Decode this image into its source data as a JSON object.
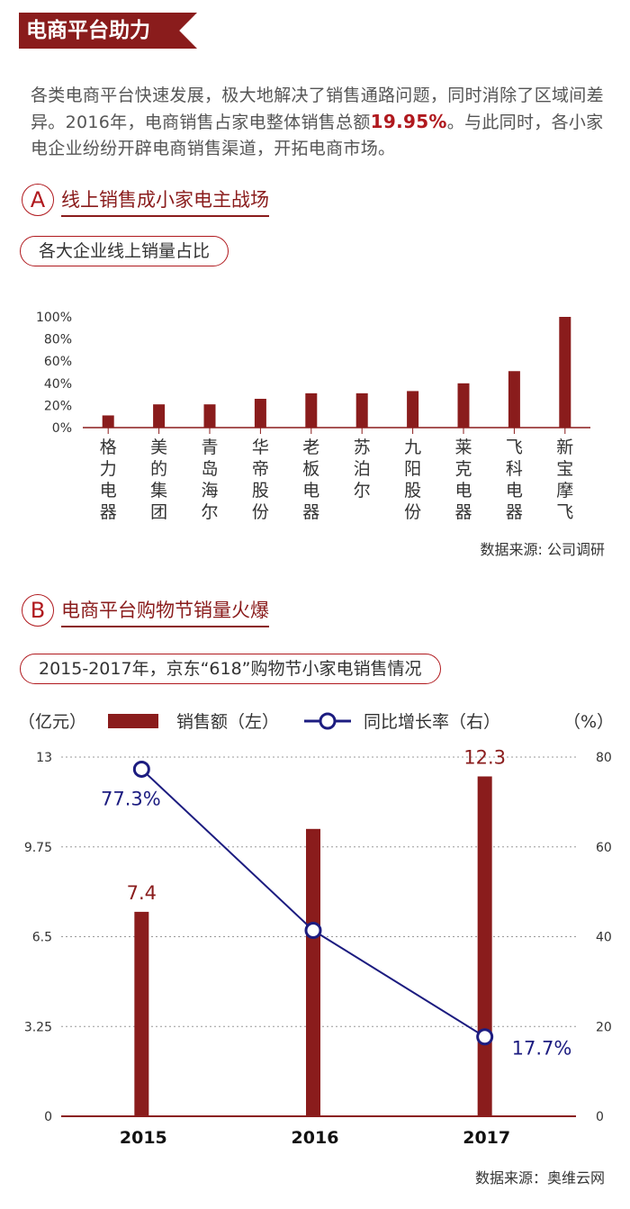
{
  "banner": {
    "title": "电商平台助力"
  },
  "intro": {
    "text_before": "各类电商平台快速发展，极大地解决了销售通路问题，同时消除了区域间差异。2016年，电商销售占家电整体销售总额",
    "highlight": "19.95%",
    "text_after": "。与此同时，各小家电企业纷纷开辟电商销售渠道，开拓电商市场。"
  },
  "section_a": {
    "letter": "A",
    "title": "线上销售成小家电主战场",
    "pill": "各大企业线上销量占比"
  },
  "section_b": {
    "letter": "B",
    "title": "电商平台购物节销量火爆",
    "pill": "2015-2017年，京东“618”购物节小家电销售情况"
  },
  "colors": {
    "accent": "#8a1c1c",
    "line": "#1c1c80",
    "text": "#333333"
  },
  "chart_data": [
    {
      "type": "bar",
      "categories": [
        "格力电器",
        "美的集团",
        "青岛海尔",
        "华帝股份",
        "老板电器",
        "苏泊尔",
        "九阳股份",
        "莱克电器",
        "飞科电器",
        "新宝摩飞"
      ],
      "values": [
        11,
        21,
        21,
        26,
        31,
        31,
        33,
        40,
        51,
        100
      ],
      "ylim": [
        0,
        100
      ],
      "yticks": [
        "0%",
        "20%",
        "40%",
        "60%",
        "80%",
        "100%"
      ],
      "source": "数据来源: 公司调研"
    },
    {
      "type": "bar+line",
      "categories": [
        "2015",
        "2016",
        "2017"
      ],
      "series": [
        {
          "name": "销售额（左）",
          "values": [
            7.4,
            10.4,
            12.3
          ],
          "data_labels": [
            "7.4",
            "",
            "12.3"
          ],
          "axis": "left"
        },
        {
          "name": "同比增长率（右）",
          "values": [
            77.3,
            41.4,
            17.7
          ],
          "data_labels": [
            "77.3%",
            "",
            "17.7%"
          ],
          "axis": "right"
        }
      ],
      "y_left": {
        "unit": "（亿元）",
        "ylim": [
          0,
          13
        ],
        "ticks": [
          "0",
          "3.25",
          "6.5",
          "9.75",
          "13"
        ]
      },
      "y_right": {
        "unit": "（%）",
        "ylim": [
          0,
          80
        ],
        "ticks": [
          "0",
          "20",
          "40",
          "60",
          "80"
        ]
      },
      "grid": true,
      "legend_position": "top",
      "source": "数据来源：奥维云网"
    }
  ]
}
